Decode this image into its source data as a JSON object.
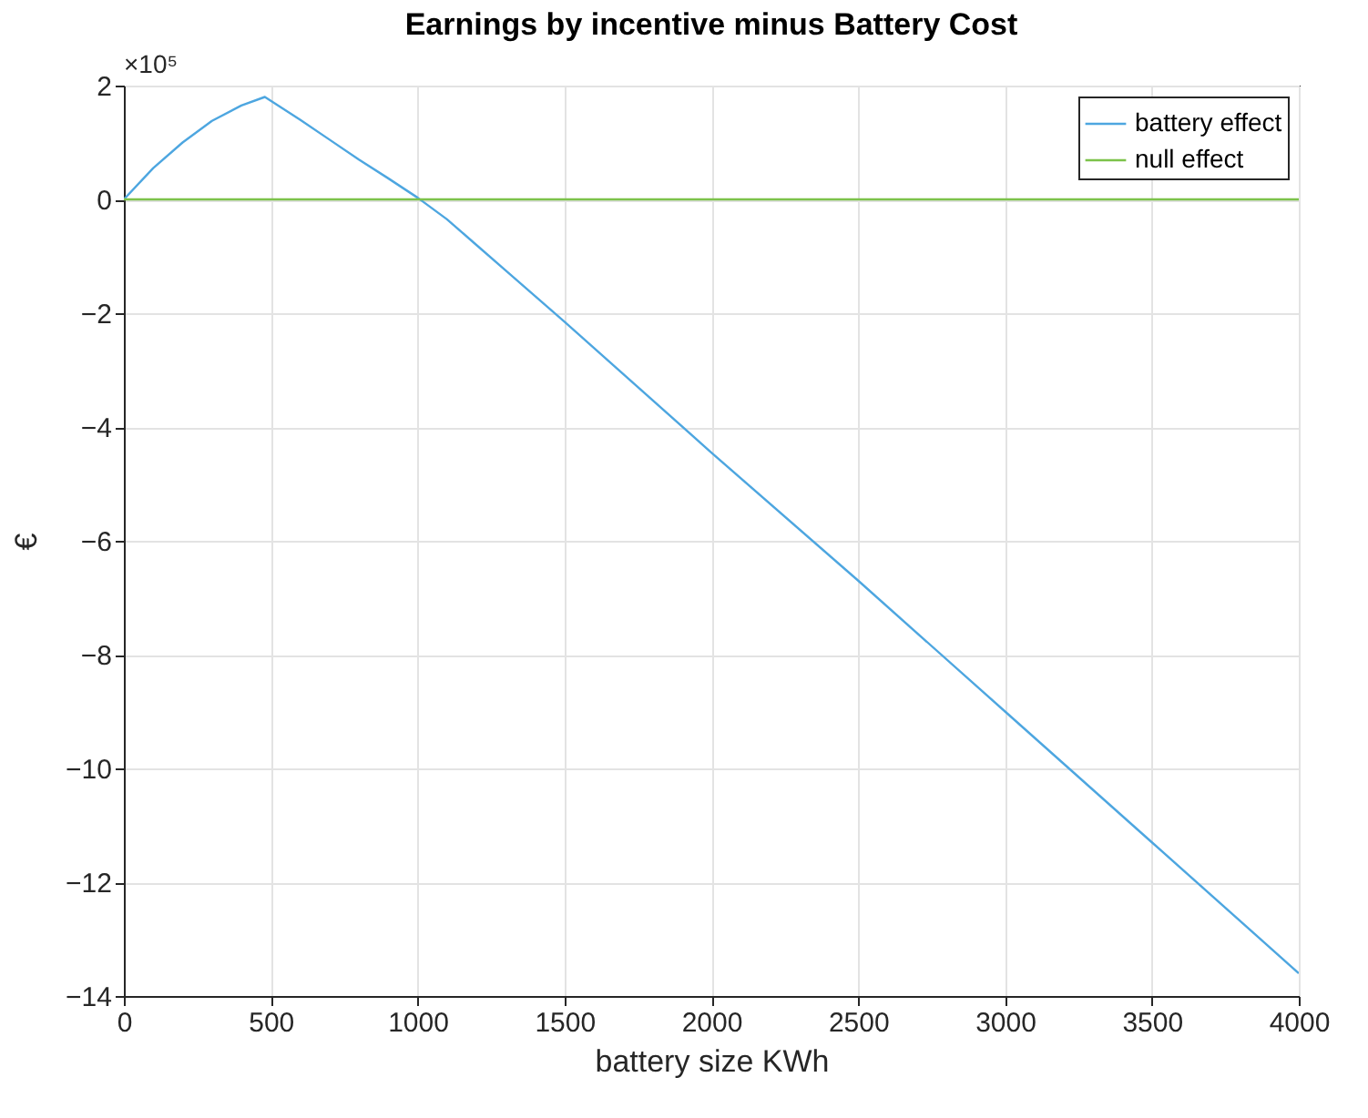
{
  "chart_data": {
    "type": "line",
    "title": "Earnings by incentive minus Battery Cost",
    "xlabel": "battery size KWh",
    "ylabel": "€",
    "annotations": [
      "×10⁵"
    ],
    "x": [
      0,
      100,
      200,
      300,
      400,
      480,
      600,
      700,
      800,
      900,
      1000,
      1100,
      1200,
      1300,
      1500,
      2000,
      2500,
      3000,
      3500,
      4000
    ],
    "series": [
      {
        "name": "battery effect",
        "color": "#4da6e0",
        "values": [
          0,
          0.55,
          1.0,
          1.38,
          1.65,
          1.8,
          1.4,
          1.05,
          0.7,
          0.37,
          0.03,
          -0.35,
          -0.8,
          -1.25,
          -2.15,
          -4.45,
          -6.7,
          -9.0,
          -11.3,
          -13.6
        ]
      },
      {
        "name": "null effect",
        "color": "#7cc24a",
        "values": [
          0,
          0,
          0,
          0,
          0,
          0,
          0,
          0,
          0,
          0,
          0,
          0,
          0,
          0,
          0,
          0,
          0,
          0,
          0,
          0
        ]
      }
    ],
    "xlim": [
      0,
      4000
    ],
    "xticks": [
      0,
      500,
      1000,
      1500,
      2000,
      2500,
      3000,
      3500,
      4000
    ],
    "ylim": [
      -14,
      2
    ],
    "yticks": [
      -14,
      -12,
      -10,
      -8,
      -6,
      -4,
      -2,
      0,
      2
    ],
    "grid": true,
    "legend": "top right",
    "line_style": "solid",
    "marker": "none"
  }
}
